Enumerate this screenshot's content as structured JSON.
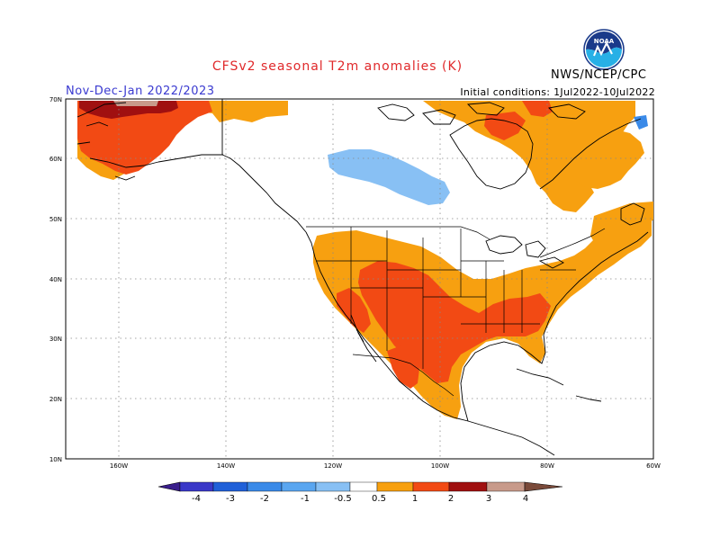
{
  "header": {
    "title": "CFSv2 seasonal T2m anomalies (K)",
    "season": "Nov-Dec-Jan 2022/2023",
    "initial_conditions": "Initial conditions: 1Jul2022-10Jul2022",
    "agency": "NWS/NCEP/CPC",
    "logo_text": "NOAA"
  },
  "axes": {
    "lat_labels": [
      "70N",
      "60N",
      "50N",
      "40N",
      "30N",
      "20N",
      "10N"
    ],
    "lon_labels": [
      "160W",
      "140W",
      "120W",
      "100W",
      "80W",
      "60W"
    ]
  },
  "colorbar": {
    "tick_labels": [
      "-4",
      "-3",
      "-2",
      "-1",
      "-0.5",
      "0.5",
      "1",
      "2",
      "3",
      "4"
    ],
    "colors": {
      "below_-4": "#3a1e8c",
      "-4_-3": "#3a38c8",
      "-3_-2": "#2060d8",
      "-2_-1": "#3a8ae8",
      "-1_-0.5": "#88c0f4",
      "neutral": "#ffffff",
      "0.5_1": "#f7a010",
      "1_2": "#f24a14",
      "2_3": "#a01010",
      "3_4": "#c89a8a",
      "above_4": "#7a4a3a"
    }
  },
  "anomaly_regions": [
    {
      "name": "alaska-warm",
      "category": "1_2"
    },
    {
      "name": "alaska-very-warm",
      "category": "2_3"
    },
    {
      "name": "alaska-extreme",
      "category": "3_4"
    },
    {
      "name": "arctic-warm",
      "category": "0.5_1"
    },
    {
      "name": "canada-cool",
      "category": "-1_-0.5"
    },
    {
      "name": "us-south-warm",
      "category": "1_2"
    },
    {
      "name": "us-broad-warm",
      "category": "0.5_1"
    },
    {
      "name": "quebec-warm",
      "category": "0.5_1"
    },
    {
      "name": "newfoundland-cool",
      "category": "-2_-1"
    }
  ]
}
